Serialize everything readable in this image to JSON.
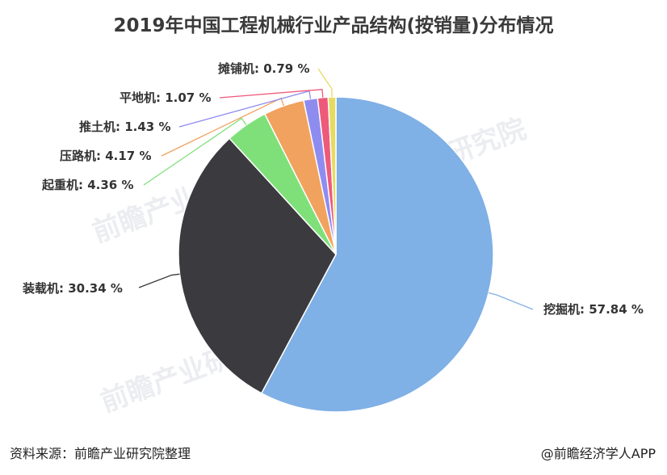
{
  "chart_data": {
    "type": "pie",
    "title": "2019年中国工程机械行业产品结构(按销量)分布情况",
    "slices": [
      {
        "label": "挖掘机",
        "value": 57.84,
        "display": "57.84 %",
        "color": "#7fb0e6"
      },
      {
        "label": "装载机",
        "value": 30.34,
        "display": "30.34 %",
        "color": "#3a3a3f"
      },
      {
        "label": "起重机",
        "value": 4.36,
        "display": "4.36 %",
        "color": "#7fe07a"
      },
      {
        "label": "压路机",
        "value": 4.17,
        "display": "4.17 %",
        "color": "#f1a25e"
      },
      {
        "label": "推土机",
        "value": 1.43,
        "display": "1.43 %",
        "color": "#8f8cf0"
      },
      {
        "label": "平地机",
        "value": 1.07,
        "display": "1.07 %",
        "color": "#ee5a7a"
      },
      {
        "label": "摊铺机",
        "value": 0.79,
        "display": "0.79 %",
        "color": "#e6db62"
      }
    ]
  },
  "footer": {
    "source": "资料来源：前瞻产业研究院整理",
    "credit": "@前瞻经济学人APP"
  },
  "watermark": {
    "text": "前瞻产业研究院"
  }
}
